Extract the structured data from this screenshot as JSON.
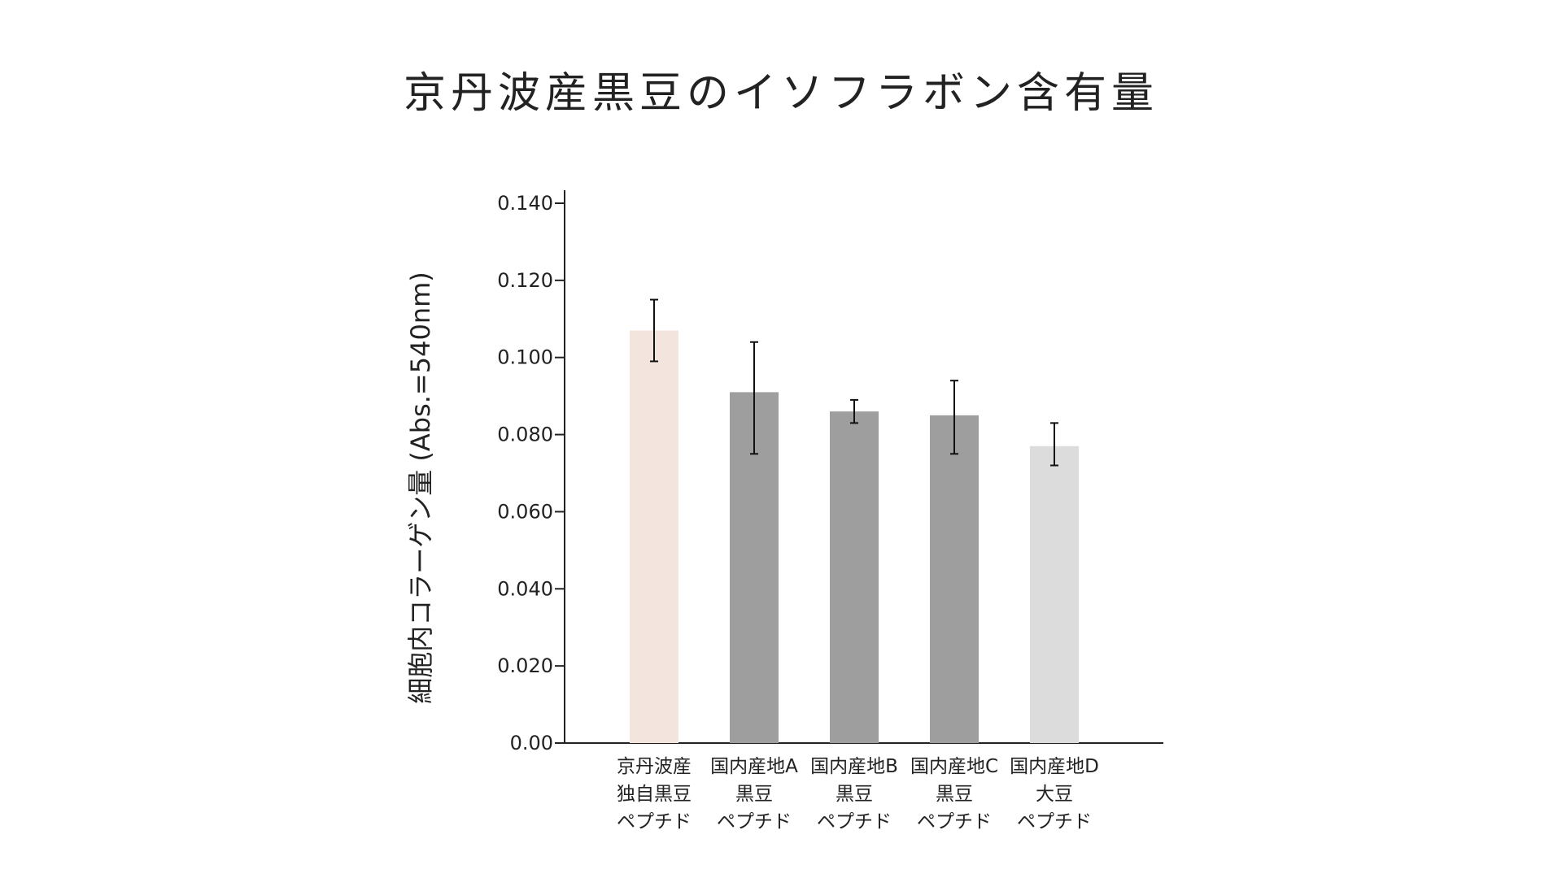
{
  "chart_data": {
    "type": "bar",
    "title": "京丹波産黒豆のイソフラボン含有量",
    "ylabel": "細胞内コラーゲン量 (Abs.=540nm)",
    "xlabel": "",
    "ylim": [
      0,
      0.14
    ],
    "yticks": [
      "0.00",
      "0.020",
      "0.040",
      "0.060",
      "0.080",
      "0.100",
      "0.120",
      "0.140"
    ],
    "ytick_values": [
      0,
      0.02,
      0.04,
      0.06,
      0.08,
      0.1,
      0.12,
      0.14
    ],
    "categories": [
      [
        "京丹波産",
        "独自黒豆",
        "ペプチド"
      ],
      [
        "国内産地A",
        "黒豆",
        "ペプチド"
      ],
      [
        "国内産地B",
        "黒豆",
        "ペプチド"
      ],
      [
        "国内産地C",
        "黒豆",
        "ペプチド"
      ],
      [
        "国内産地D",
        "大豆",
        "ペプチド"
      ]
    ],
    "values": [
      0.107,
      0.091,
      0.086,
      0.085,
      0.077
    ],
    "error_low": [
      0.099,
      0.075,
      0.083,
      0.075,
      0.072
    ],
    "error_high": [
      0.115,
      0.104,
      0.089,
      0.094,
      0.083
    ],
    "colors": [
      "#f4e4de",
      "#9e9e9e",
      "#9e9e9e",
      "#9e9e9e",
      "#dcdcdc"
    ],
    "grid": false,
    "legend": "none"
  }
}
